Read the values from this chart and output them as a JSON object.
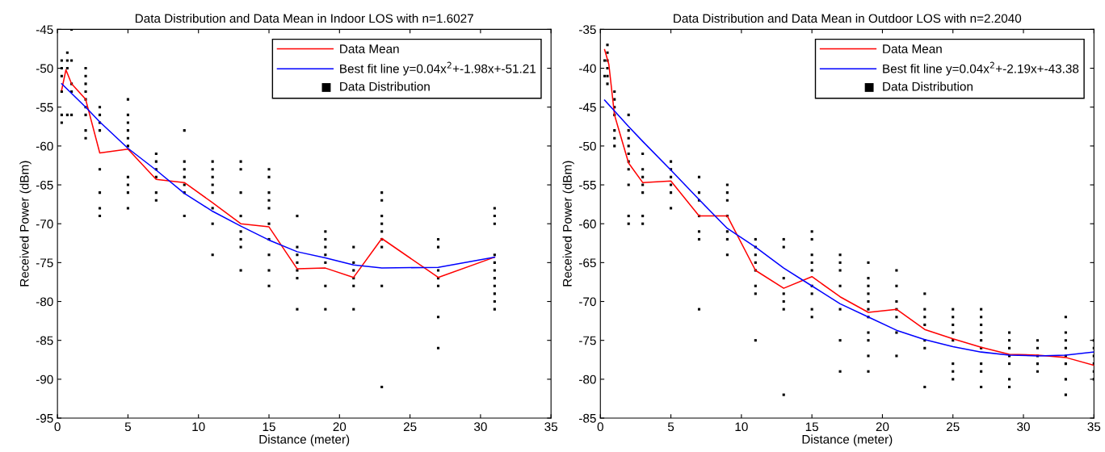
{
  "chart_data": [
    {
      "type": "line",
      "title": "Data Distribution and Data Mean in Indoor LOS with n=1.6027",
      "xlabel": "Distance (meter)",
      "ylabel": "Received Power (dBm)",
      "xlim": [
        0,
        35
      ],
      "ylim": [
        -95,
        -45
      ],
      "xticks": [
        0,
        5,
        10,
        15,
        20,
        25,
        30,
        35
      ],
      "yticks": [
        -95,
        -90,
        -85,
        -80,
        -75,
        -70,
        -65,
        -60,
        -55,
        -50,
        -45
      ],
      "grid": false,
      "legend": "top right",
      "line_style": "solid",
      "series": [
        {
          "name": "Data Mean",
          "color": "#ff0000",
          "marker": "none",
          "x": [
            0.3,
            0.6,
            1,
            2,
            3,
            5,
            7,
            9,
            11,
            13,
            15,
            17,
            19,
            21,
            23,
            27,
            31
          ],
          "values": [
            -52.8,
            -50.2,
            -52,
            -54,
            -60.9,
            -60.4,
            -64.3,
            -64.7,
            -67.3,
            -70,
            -70.4,
            -75.8,
            -75.7,
            -76.9,
            -71.9,
            -76.9,
            -74.3
          ]
        },
        {
          "name": "Best fit line y=0.04x$^{2}$+-1.98x+-51.21",
          "color": "#0000ff",
          "marker": "none",
          "x": [
            0.3,
            2,
            3,
            5,
            7,
            9,
            11,
            13,
            15,
            17,
            19,
            21,
            23,
            27,
            31
          ],
          "values": [
            -52,
            -55,
            -56.9,
            -60.3,
            -63.1,
            -66.1,
            -68.4,
            -70.3,
            -72.1,
            -73.6,
            -74.4,
            -75.3,
            -75.7,
            -75.6,
            -74.3
          ]
        },
        {
          "name": "Data Distribution",
          "type": "scatter",
          "color": "#000000",
          "marker": "square",
          "x": [
            0.3,
            0.3,
            0.3,
            0.3,
            0.3,
            0.3,
            0.7,
            0.7,
            0.7,
            0.7,
            1,
            1,
            1,
            1,
            1,
            2,
            2,
            2,
            2,
            2,
            2,
            2,
            2,
            2,
            3,
            3,
            3,
            3,
            3,
            3,
            3,
            3,
            5,
            5,
            5,
            5,
            5,
            5,
            5,
            5,
            5,
            5,
            7,
            7,
            7,
            7,
            7,
            7,
            9,
            9,
            9,
            9,
            9,
            9,
            9,
            11,
            11,
            11,
            11,
            11,
            11,
            11,
            11,
            13,
            13,
            13,
            13,
            13,
            13,
            13,
            13,
            15,
            15,
            15,
            15,
            15,
            15,
            15,
            15,
            15,
            15,
            17,
            17,
            17,
            17,
            17,
            17,
            17,
            19,
            19,
            19,
            19,
            19,
            19,
            19,
            21,
            21,
            21,
            21,
            21,
            21,
            23,
            23,
            23,
            23,
            23,
            23,
            23,
            23,
            23,
            27,
            27,
            27,
            27,
            27,
            27,
            27,
            31,
            31,
            31,
            31,
            31,
            31,
            31,
            31,
            31,
            31,
            31
          ],
          "values": [
            -49,
            -50,
            -51,
            -53,
            -56,
            -57,
            -48,
            -49,
            -50,
            -56,
            -45,
            -49,
            -52,
            -53,
            -56,
            -50,
            -51,
            -52,
            -53,
            -54,
            -55,
            -56,
            -58,
            -59,
            -55,
            -56,
            -57,
            -58,
            -63,
            -66,
            -68,
            -69,
            -54,
            -56,
            -57,
            -58,
            -59,
            -60,
            -64,
            -65,
            -66,
            -68,
            -61,
            -62,
            -63,
            -64,
            -66,
            -67,
            -58,
            -62,
            -63,
            -64,
            -65,
            -66,
            -69,
            -62,
            -63,
            -64,
            -65,
            -66,
            -68,
            -70,
            -74,
            -62,
            -63,
            -66,
            -69,
            -71,
            -72,
            -73,
            -76,
            -63,
            -64,
            -66,
            -67,
            -68,
            -70,
            -72,
            -74,
            -76,
            -78,
            -69,
            -73,
            -74,
            -75,
            -76,
            -77,
            -81,
            -71,
            -72,
            -73,
            -74,
            -75,
            -78,
            -81,
            -73,
            -75,
            -76,
            -77,
            -78,
            -81,
            -66,
            -67,
            -69,
            -70,
            -71,
            -72,
            -73,
            -78,
            -91,
            -72,
            -73,
            -76,
            -77,
            -78,
            -82,
            -86,
            -68,
            -69,
            -70,
            -74,
            -75,
            -76,
            -77,
            -78,
            -79,
            -80,
            -81
          ]
        }
      ]
    },
    {
      "type": "line",
      "title": "Data Distribution and Data Mean in Outdoor LOS with n=2.2040",
      "xlabel": "Distance (meter)",
      "ylabel": "Received Power (dBm)",
      "xlim": [
        0,
        35
      ],
      "ylim": [
        -85,
        -35
      ],
      "xticks": [
        0,
        5,
        10,
        15,
        20,
        25,
        30,
        35
      ],
      "yticks": [
        -85,
        -80,
        -75,
        -70,
        -65,
        -60,
        -55,
        -50,
        -45,
        -40,
        -35
      ],
      "grid": false,
      "legend": "top right",
      "line_style": "solid",
      "series": [
        {
          "name": "Data Mean",
          "color": "#ff0000",
          "marker": "none",
          "x": [
            0.3,
            0.6,
            1,
            2,
            3,
            5,
            7,
            9,
            11,
            13,
            15,
            17,
            19,
            21,
            23,
            25,
            27,
            29,
            31,
            33,
            35
          ],
          "values": [
            -37.6,
            -39.5,
            -46,
            -52.2,
            -54.7,
            -54.5,
            -59,
            -59,
            -66,
            -68.3,
            -66.8,
            -69.4,
            -71.4,
            -71,
            -73.6,
            -74.8,
            -75.9,
            -76.8,
            -76.9,
            -77.2,
            -78.2
          ]
        },
        {
          "name": "Best fit line y=0.04x$^{2}$+-2.19x+-43.38",
          "color": "#0000ff",
          "marker": "none",
          "x": [
            0.3,
            1,
            2,
            3,
            5,
            7,
            9,
            11,
            13,
            15,
            17,
            19,
            21,
            23,
            25,
            27,
            29,
            31,
            33,
            35
          ],
          "values": [
            -44.1,
            -45.5,
            -47.5,
            -49.4,
            -53.1,
            -56.9,
            -60.6,
            -63,
            -65.7,
            -68,
            -70.3,
            -72,
            -73.7,
            -74.9,
            -75.8,
            -76.5,
            -76.9,
            -77,
            -76.9,
            -76.5
          ]
        },
        {
          "name": "Data Distribution",
          "type": "scatter",
          "color": "#000000",
          "marker": "square",
          "x": [
            0.3,
            0.3,
            0.5,
            0.5,
            0.5,
            0.5,
            0.5,
            0.5,
            1,
            1,
            1,
            1,
            1,
            1,
            1,
            2,
            2,
            2,
            2,
            2,
            2,
            2,
            2,
            2,
            2,
            3,
            3,
            3,
            3,
            3,
            3,
            3,
            5,
            5,
            5,
            5,
            5,
            5,
            7,
            7,
            7,
            7,
            7,
            7,
            7,
            9,
            9,
            9,
            9,
            9,
            9,
            9,
            11,
            11,
            11,
            11,
            11,
            11,
            11,
            11,
            13,
            13,
            13,
            13,
            13,
            13,
            13,
            15,
            15,
            15,
            15,
            15,
            15,
            15,
            15,
            15,
            17,
            17,
            17,
            17,
            17,
            17,
            17,
            19,
            19,
            19,
            19,
            19,
            19,
            19,
            19,
            19,
            19,
            19,
            21,
            21,
            21,
            21,
            21,
            21,
            21,
            23,
            23,
            23,
            23,
            23,
            23,
            23,
            25,
            25,
            25,
            25,
            25,
            25,
            25,
            25,
            27,
            27,
            27,
            27,
            27,
            27,
            27,
            27,
            27,
            29,
            29,
            29,
            29,
            29,
            29,
            29,
            31,
            31,
            31,
            31,
            31,
            33,
            33,
            33,
            33,
            33,
            33,
            33,
            33,
            35,
            35,
            35,
            35,
            35,
            35
          ],
          "values": [
            -39,
            -41,
            -37,
            -38,
            -39,
            -40,
            -41,
            -42,
            -43,
            -44,
            -45,
            -46,
            -48,
            -49,
            -50,
            -46,
            -48,
            -49,
            -50,
            -51,
            -52,
            -53,
            -55,
            -59,
            -60,
            -51,
            -53,
            -54,
            -55,
            -56,
            -59,
            -60,
            -52,
            -53,
            -54,
            -55,
            -56,
            -58,
            -54,
            -56,
            -57,
            -59,
            -61,
            -62,
            -71,
            -55,
            -56,
            -57,
            -59,
            -61,
            -62,
            -64,
            -62,
            -63,
            -64,
            -65,
            -66,
            -68,
            -69,
            -75,
            -62,
            -63,
            -67,
            -69,
            -70,
            -71,
            -82,
            -61,
            -62,
            -64,
            -65,
            -66,
            -68,
            -69,
            -71,
            -72,
            -64,
            -65,
            -66,
            -68,
            -71,
            -75,
            -79,
            -65,
            -67,
            -68,
            -69,
            -70,
            -71,
            -72,
            -74,
            -75,
            -77,
            -79,
            -66,
            -68,
            -70,
            -71,
            -72,
            -74,
            -77,
            -69,
            -71,
            -72,
            -73,
            -75,
            -76,
            -81,
            -71,
            -72,
            -73,
            -74,
            -75,
            -78,
            -79,
            -80,
            -71,
            -72,
            -73,
            -74,
            -75,
            -76,
            -78,
            -79,
            -81,
            -74,
            -75,
            -76,
            -77,
            -78,
            -80,
            -81,
            -75,
            -76,
            -77,
            -78,
            -79,
            -72,
            -74,
            -75,
            -76,
            -77,
            -78,
            -80,
            -82,
            -75,
            -76,
            -77,
            -78,
            -79,
            -80
          ]
        }
      ]
    }
  ]
}
